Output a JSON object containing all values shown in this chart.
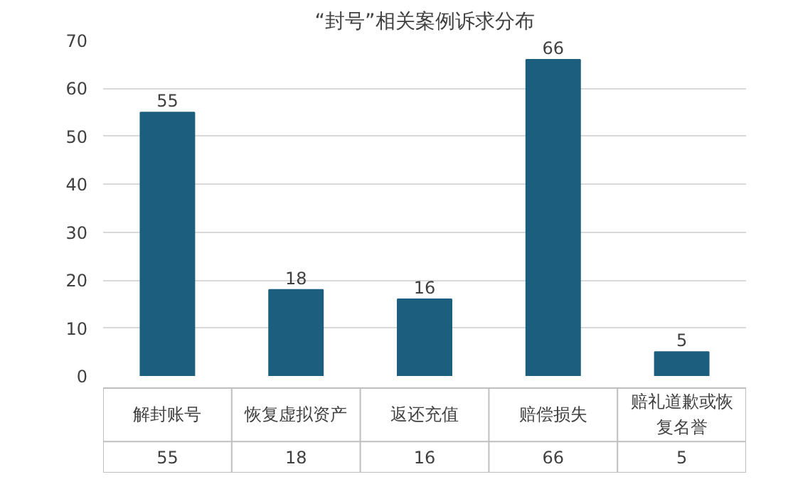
{
  "chart_data": {
    "type": "bar",
    "title": "“封号”相关案例诉求分布",
    "categories": [
      "解封账号",
      "恢复虚拟资产",
      "返还充值",
      "赔偿损失",
      "赔礼道歉或恢复名誉"
    ],
    "values": [
      55,
      18,
      16,
      66,
      5
    ],
    "value_labels": [
      "55",
      "18",
      "16",
      "66",
      "5"
    ],
    "color": "#1b5e7e",
    "ylim": [
      0,
      70
    ],
    "yticks": [
      0,
      10,
      20,
      30,
      40,
      50,
      60,
      70
    ],
    "grid": "y",
    "data_labels": true
  }
}
